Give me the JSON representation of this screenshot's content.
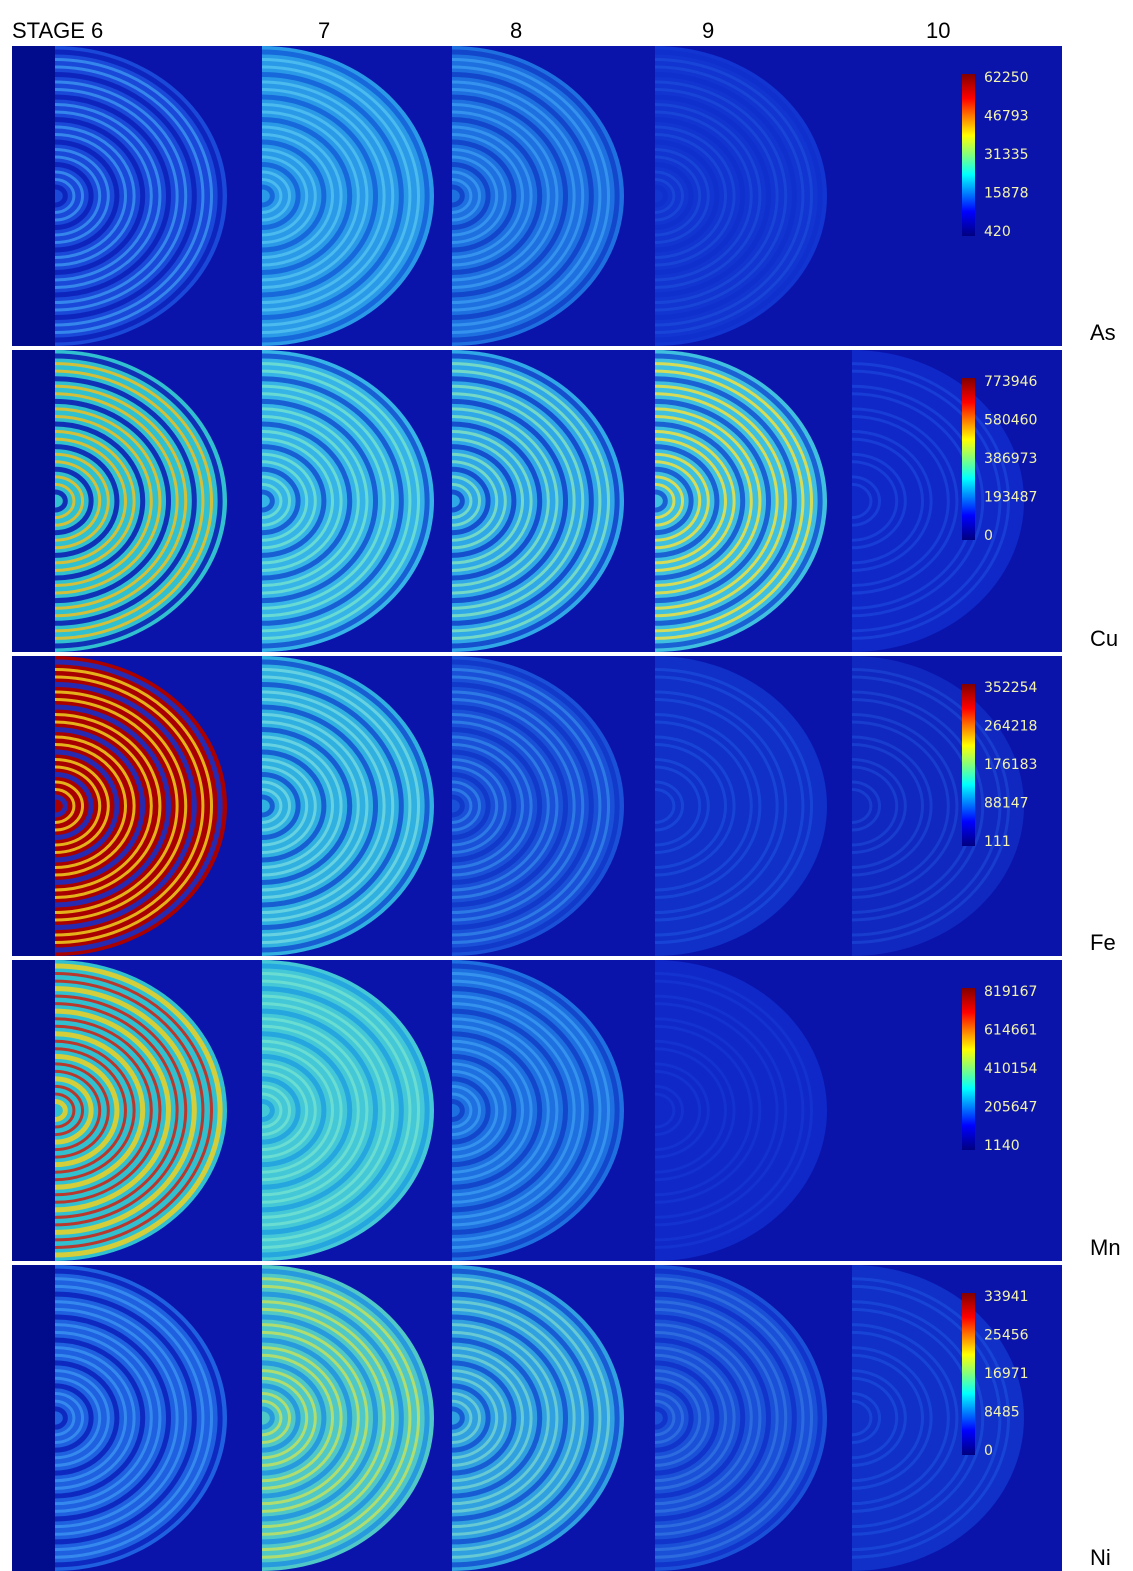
{
  "columns": [
    "STAGE 6",
    "7",
    "8",
    "9",
    "10"
  ],
  "rows": [
    {
      "label": "As",
      "colorbar": [
        62250,
        46793,
        31335,
        15878,
        420
      ]
    },
    {
      "label": "Cu",
      "colorbar": [
        773946,
        580460,
        386973,
        193487,
        0
      ]
    },
    {
      "label": "Fe",
      "colorbar": [
        352254,
        264218,
        176183,
        88147,
        111
      ]
    },
    {
      "label": "Mn",
      "colorbar": [
        819167,
        614661,
        410154,
        205647,
        1140
      ]
    },
    {
      "label": "Ni",
      "colorbar": [
        33941,
        25456,
        16971,
        8485,
        0
      ]
    }
  ]
}
